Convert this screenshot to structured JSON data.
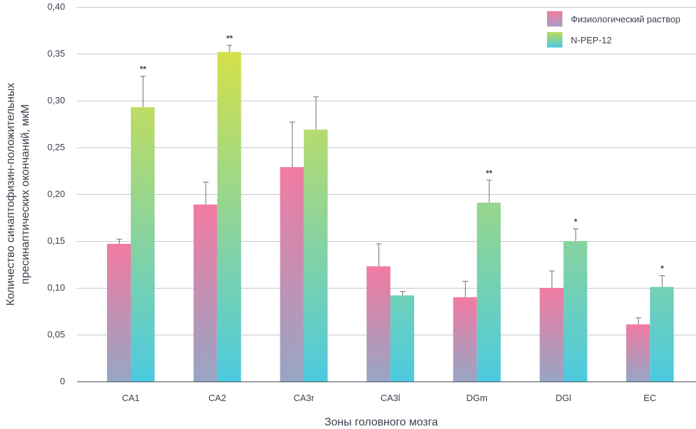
{
  "chart_data": {
    "type": "bar",
    "title": "",
    "xlabel": "Зоны головного мозга",
    "ylabel_lines": [
      "Количество синаптофизин-положительных",
      "пресинаптических окончаний, мкМ"
    ],
    "ylim": [
      0,
      0.4
    ],
    "yticks": [
      0,
      0.05,
      0.1,
      0.15,
      0.2,
      0.25,
      0.3,
      0.35,
      0.4
    ],
    "ytick_labels": [
      "0",
      "0,05",
      "0,10",
      "0,15",
      "0,20",
      "0,25",
      "0,30",
      "0,35",
      "0,40"
    ],
    "categories": [
      "CA1",
      "CA2",
      "CA3r",
      "CA3l",
      "DGm",
      "DGl",
      "EC"
    ],
    "series": [
      {
        "name": "Физиологический раствор",
        "values": [
          0.147,
          0.189,
          0.229,
          0.123,
          0.09,
          0.1,
          0.061
        ],
        "errors": [
          0.005,
          0.024,
          0.048,
          0.024,
          0.017,
          0.018,
          0.007
        ],
        "significance": [
          "",
          "",
          "",
          "",
          "",
          "",
          ""
        ],
        "gradient": [
          "#f07aa0",
          "#9aa8c0"
        ]
      },
      {
        "name": "N-PEP-12",
        "values": [
          0.293,
          0.352,
          0.269,
          0.092,
          0.191,
          0.15,
          0.101
        ],
        "errors": [
          0.033,
          0.007,
          0.035,
          0.004,
          0.024,
          0.013,
          0.012
        ],
        "significance": [
          "**",
          "**",
          "",
          "",
          "**",
          "*",
          "*"
        ],
        "gradient_top": [
          "#d7e04a",
          "#a8d470"
        ],
        "gradient_bottom": "#4ccae0"
      }
    ],
    "legend_position": "top-right",
    "grid": true
  }
}
